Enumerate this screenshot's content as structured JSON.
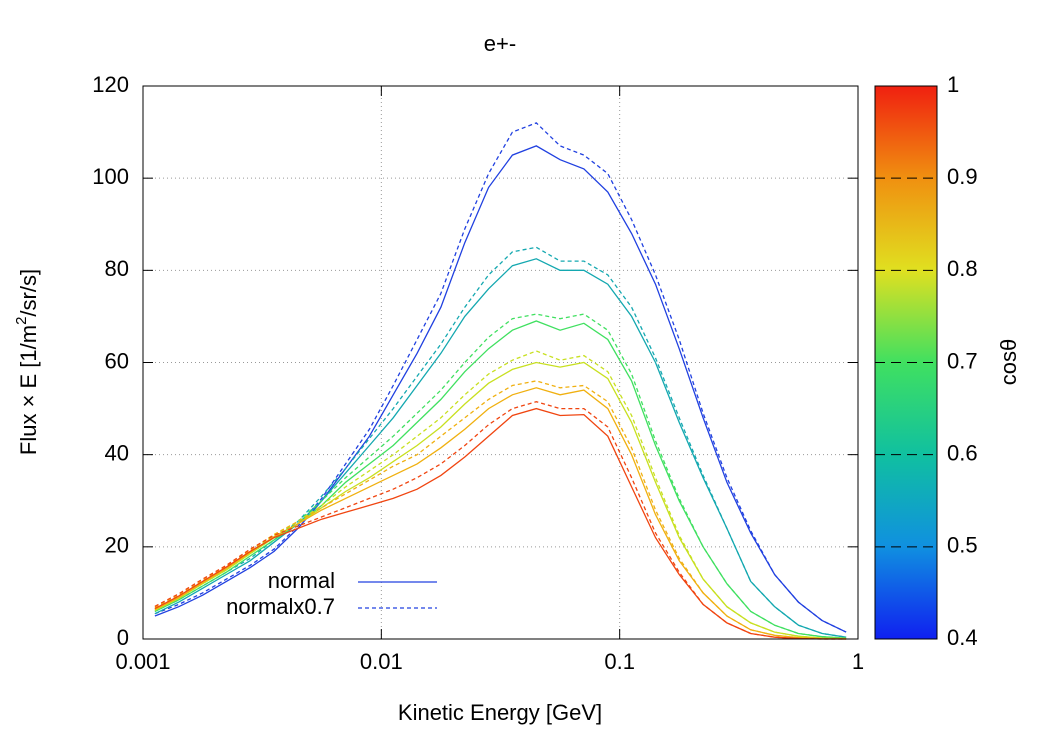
{
  "chart_data": {
    "type": "line",
    "title": "e+-",
    "xlabel": "Kinetic Energy [GeV]",
    "ylabel": [
      "Flux × E [1/m",
      "2",
      "/sr/s]"
    ],
    "xscale": "log",
    "xlim": [
      0.001,
      1
    ],
    "xticks": [
      0.001,
      0.01,
      0.1,
      1
    ],
    "ylim": [
      0,
      120
    ],
    "yticks": [
      0,
      20,
      40,
      60,
      80,
      100,
      120
    ],
    "grid": true,
    "x": [
      0.001122,
      0.001413,
      0.001778,
      0.002239,
      0.002818,
      0.003548,
      0.004467,
      0.005623,
      0.007079,
      0.008913,
      0.01122,
      0.01413,
      0.01778,
      0.02239,
      0.02818,
      0.03548,
      0.04467,
      0.05623,
      0.07079,
      0.08913,
      0.1122,
      0.1413,
      0.1778,
      0.2239,
      0.2818,
      0.3548,
      0.4467,
      0.5623,
      0.7079,
      0.8913
    ],
    "legend": [
      {
        "label": "normal",
        "color": "#2040e0",
        "dashed": false
      },
      {
        "label": "normalx0.7",
        "color": "#2040e0",
        "dashed": true
      }
    ],
    "series": [
      {
        "color": "#2040e0",
        "dashed": false,
        "values": [
          5,
          7,
          9.5,
          12.5,
          15.5,
          19,
          24,
          30,
          37,
          44,
          53,
          62,
          72,
          86,
          98,
          105,
          107,
          104,
          102,
          97,
          88,
          77,
          63,
          48,
          34,
          23,
          14,
          8,
          4,
          1.5
        ]
      },
      {
        "color": "#2040e0",
        "dashed": true,
        "values": [
          5.5,
          7.5,
          10,
          13,
          16,
          19.5,
          24.5,
          30.5,
          38,
          45.5,
          55,
          65,
          75,
          89,
          101,
          110,
          112,
          107,
          105,
          101,
          91,
          79,
          65,
          49,
          35,
          23.5,
          14,
          8,
          4,
          1.5
        ]
      },
      {
        "color": "#14a8b0",
        "dashed": false,
        "values": [
          5.5,
          8,
          11,
          14,
          17,
          21,
          25,
          30,
          36,
          42,
          48,
          55,
          62,
          70,
          76,
          81,
          82.5,
          80,
          80,
          77,
          70,
          60,
          47,
          35,
          24,
          12.5,
          7,
          3,
          1.2,
          0.4
        ]
      },
      {
        "color": "#14a8b0",
        "dashed": true,
        "values": [
          6,
          8.5,
          11.5,
          14.5,
          17.5,
          21.5,
          25.5,
          31,
          37,
          43.5,
          50,
          57,
          64,
          72,
          79,
          84,
          85,
          82,
          82,
          79,
          72,
          61,
          48,
          35.5,
          24,
          12.5,
          7,
          3,
          1.2,
          0.4
        ]
      },
      {
        "color": "#40e060",
        "dashed": false,
        "values": [
          6,
          8.5,
          11.5,
          14.5,
          18,
          21.5,
          25,
          29,
          34,
          38,
          42,
          47,
          52,
          58,
          63,
          67,
          69,
          67,
          68.5,
          65,
          56,
          42,
          30,
          20,
          12,
          6,
          3,
          1.2,
          0.5,
          0.2
        ]
      },
      {
        "color": "#40e060",
        "dashed": true,
        "values": [
          6.5,
          9,
          12,
          15,
          18.5,
          22,
          25.5,
          30,
          35,
          39.5,
          44,
          49,
          54,
          60,
          65.5,
          69.5,
          70.5,
          69.5,
          70.5,
          67,
          57.5,
          43,
          30.5,
          20,
          12,
          6,
          3,
          1.2,
          0.5,
          0.2
        ]
      },
      {
        "color": "#c8e020",
        "dashed": false,
        "values": [
          6.2,
          8.8,
          12,
          15,
          18.5,
          22,
          25,
          28.5,
          32,
          35,
          38.5,
          42,
          46,
          51,
          55.5,
          58.5,
          60,
          59,
          60,
          56.5,
          47,
          34,
          22,
          13,
          7,
          3.5,
          1.5,
          0.6,
          0.2,
          0.1
        ]
      },
      {
        "color": "#c8e020",
        "dashed": true,
        "values": [
          6.7,
          9.3,
          12.5,
          15.5,
          19,
          22.5,
          25.5,
          29,
          33,
          36.5,
          40,
          44,
          48,
          53,
          57.5,
          60.5,
          62.5,
          60.5,
          61.5,
          58,
          48.5,
          35,
          22.5,
          13,
          7,
          3.5,
          1.5,
          0.6,
          0.2,
          0.1
        ]
      },
      {
        "color": "#f0b010",
        "dashed": false,
        "values": [
          6.4,
          9,
          12.2,
          15.3,
          18.8,
          22.2,
          25,
          28,
          30.5,
          33,
          35.5,
          38,
          41.5,
          45.5,
          50,
          53,
          54.5,
          53,
          54,
          50,
          40,
          27,
          17,
          10,
          5,
          2,
          0.8,
          0.3,
          0.1,
          0
        ]
      },
      {
        "color": "#f0b010",
        "dashed": true,
        "values": [
          6.9,
          9.5,
          12.7,
          15.8,
          19.3,
          22.7,
          25.5,
          28.5,
          31.5,
          34.5,
          37.5,
          40,
          44,
          48,
          52,
          55,
          56,
          54.5,
          55,
          51.5,
          41.5,
          28,
          17.5,
          10,
          5,
          2,
          0.8,
          0.3,
          0.1,
          0
        ]
      },
      {
        "color": "#f04510",
        "dashed": false,
        "values": [
          6.6,
          9.3,
          12.5,
          15.6,
          19,
          22,
          24,
          26,
          27.5,
          29,
          30.5,
          32.5,
          35.5,
          39.5,
          44,
          48.5,
          50,
          48.5,
          48.7,
          44,
          33,
          22,
          14,
          7.5,
          3.5,
          1.2,
          0.4,
          0.1,
          0,
          0
        ]
      },
      {
        "color": "#f04510",
        "dashed": true,
        "values": [
          7.1,
          9.8,
          13,
          16,
          19.5,
          22.5,
          24.5,
          26.5,
          28.5,
          30.5,
          32.5,
          35,
          38,
          42,
          46.5,
          50,
          51.5,
          50,
          50,
          46,
          35,
          23,
          14.5,
          7.5,
          3.5,
          1.2,
          0.4,
          0.1,
          0,
          0
        ]
      }
    ],
    "colorbar": {
      "label": "cosθ",
      "clim": [
        0.4,
        1
      ],
      "ticks": [
        0.4,
        0.5,
        0.6,
        0.7,
        0.8,
        0.9,
        1
      ],
      "colors": [
        "#1020f0",
        "#1090e0",
        "#10c0a0",
        "#40e060",
        "#e0e020",
        "#f09010",
        "#f02010"
      ]
    }
  }
}
